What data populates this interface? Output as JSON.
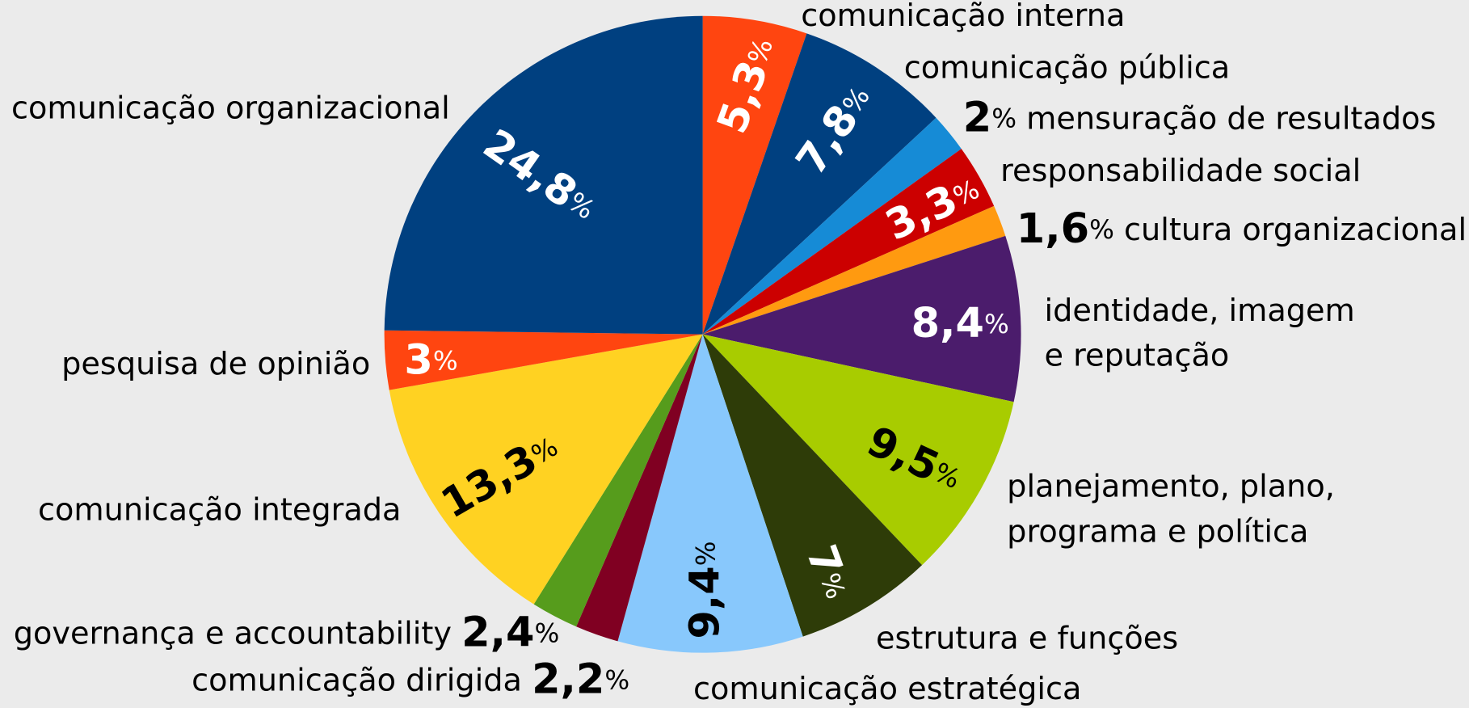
{
  "chart_data": {
    "type": "pie",
    "categories": [
      "comunicação interna",
      "comunicação pública",
      "mensuração de resultados",
      "responsabilidade social",
      "cultura organizacional",
      "identidade, imagem\ne reputação",
      "planejamento, plano,\nprograma e política",
      "estrutura e funções",
      "comunicação estratégica",
      "comunicação dirigida",
      "governança e accountability",
      "comunicação integrada",
      "pesquisa de opinião",
      "comunicação organizacional"
    ],
    "values": [
      5.3,
      7.8,
      2,
      3.3,
      1.6,
      8.4,
      9.5,
      7,
      9.4,
      2.2,
      2.4,
      13.3,
      3,
      24.8
    ],
    "value_labels": [
      "5,3%",
      "7,8%",
      "2%",
      "3,3%",
      "1,6%",
      "8,4%",
      "9,5%",
      "7%",
      "9,4%",
      "2,2%",
      "2,4%",
      "13,3%",
      "3%",
      "24,8%"
    ],
    "colors": [
      "#ff4510",
      "#004080",
      "#168bd6",
      "#cc0000",
      "#ff9a10",
      "#4b1c6c",
      "#a8cc00",
      "#2e3c08",
      "#88c8fc",
      "#800022",
      "#569c1c",
      "#ffd222",
      "#ff4510",
      "#004080"
    ]
  }
}
